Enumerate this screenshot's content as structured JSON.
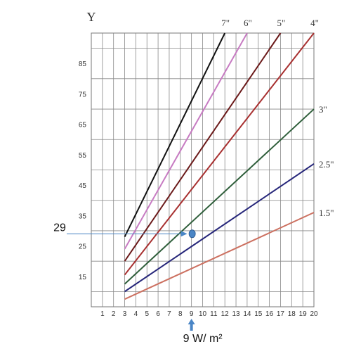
{
  "chart_data": {
    "type": "line",
    "ylabel": "Y",
    "xlim": [
      0,
      20
    ],
    "ylim": [
      5,
      95
    ],
    "x_ticks": [
      1,
      2,
      3,
      4,
      5,
      6,
      7,
      8,
      9,
      10,
      11,
      12,
      13,
      14,
      15,
      16,
      17,
      18,
      19,
      20
    ],
    "y_ticks": [
      15,
      25,
      35,
      45,
      55,
      65,
      75,
      85
    ],
    "grid": true,
    "series": [
      {
        "name": "7\"",
        "color": "#111111",
        "x": [
          3,
          12
        ],
        "y": [
          28,
          95
        ]
      },
      {
        "name": "6\"",
        "color": "#c77bc2",
        "x": [
          3,
          14
        ],
        "y": [
          24,
          95
        ]
      },
      {
        "name": "5\"",
        "color": "#6b1a1a",
        "x": [
          3,
          17
        ],
        "y": [
          20,
          95
        ]
      },
      {
        "name": "4\"",
        "color": "#a83030",
        "x": [
          3,
          20
        ],
        "y": [
          15.5,
          95
        ]
      },
      {
        "name": "3\"",
        "color": "#2e5e3a",
        "x": [
          3,
          20
        ],
        "y": [
          12.5,
          70
        ]
      },
      {
        "name": "2.5\"",
        "color": "#26267a",
        "x": [
          3,
          20
        ],
        "y": [
          10,
          52
        ]
      },
      {
        "name": "1.5\"",
        "color": "#cc7060",
        "x": [
          3,
          20
        ],
        "y": [
          7.5,
          36
        ]
      }
    ],
    "annotations": {
      "y_value_label": "29",
      "y_value": 29,
      "x_value_label": "9 W/ m²",
      "x_value": 9,
      "marker_color": "#4a86c6"
    }
  }
}
